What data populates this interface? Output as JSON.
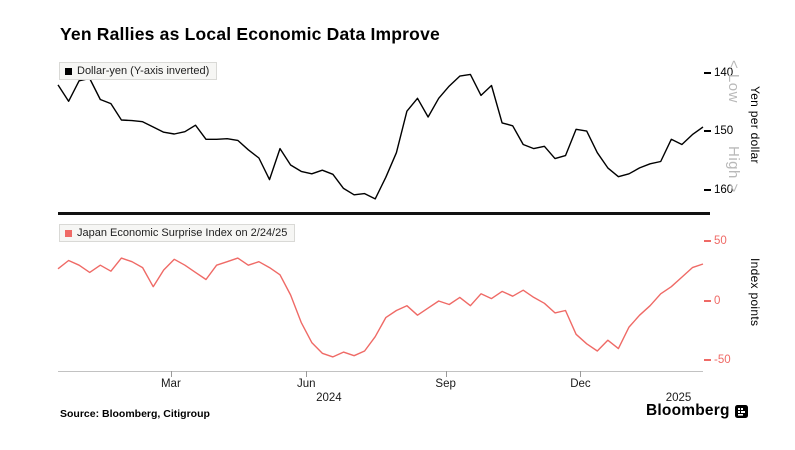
{
  "title": "Yen Rallies as Local Economic Data Improve",
  "source_note": "Source: Bloomberg, Citigroup",
  "brand": "Bloomberg",
  "chart_data": [
    {
      "type": "line",
      "title": "Dollar-yen (Y-axis inverted)",
      "line_name": "dollar-yen-line",
      "color": "#000000",
      "y_axis": {
        "label": "Yen per dollar",
        "ticks": [
          140,
          150,
          160
        ],
        "range": [
          137.5,
          163.5
        ],
        "inverted": true
      },
      "inverted_axis_note": {
        "low_label": "< Low",
        "high_label": "High >"
      },
      "x": "weekly, Dec 2023 - Feb 2025",
      "values": [
        142.1,
        144.9,
        141.4,
        141.0,
        144.6,
        145.3,
        148.1,
        148.2,
        148.4,
        149.3,
        150.2,
        150.5,
        150.1,
        149.0,
        151.4,
        151.4,
        151.3,
        151.6,
        153.2,
        154.6,
        158.3,
        153.0,
        155.8,
        156.9,
        157.3,
        156.7,
        157.4,
        159.8,
        160.9,
        160.7,
        161.6,
        157.9,
        153.7,
        146.6,
        144.4,
        147.6,
        144.4,
        142.3,
        140.6,
        140.3,
        143.9,
        142.2,
        148.6,
        149.1,
        152.3,
        153.0,
        152.6,
        154.7,
        154.2,
        149.7,
        150.0,
        153.7,
        156.3,
        157.8,
        157.3,
        156.3,
        155.6,
        155.2,
        151.4,
        152.3,
        150.6,
        149.3
      ]
    },
    {
      "type": "line",
      "title": "Japan Economic Surprise Index on 2/24/25",
      "line_name": "surprise-index-line",
      "color": "#ef6a66",
      "y_axis": {
        "label": "Index points",
        "ticks": [
          50,
          0,
          -50
        ],
        "range": [
          -58,
          68
        ],
        "inverted": false
      },
      "x": "weekly, Dec 2023 - Feb 2025",
      "values": [
        27,
        34,
        30,
        24,
        30,
        25,
        36,
        33,
        28,
        12,
        26,
        35,
        30,
        24,
        18,
        30,
        33,
        36,
        30,
        33,
        28,
        22,
        5,
        -18,
        -35,
        -44,
        -47,
        -43,
        -46,
        -42,
        -30,
        -14,
        -8,
        -4,
        -12,
        -6,
        0,
        -3,
        3,
        -4,
        6,
        2,
        8,
        4,
        9,
        3,
        -2,
        -10,
        -8,
        -28,
        -36,
        -42,
        -33,
        -40,
        -22,
        -12,
        -4,
        6,
        12,
        20,
        28,
        31
      ]
    }
  ],
  "x_axis": {
    "ticks": [
      {
        "label": "Mar",
        "pos": 0.175
      },
      {
        "label": "Jun",
        "pos": 0.385
      },
      {
        "label": "Sep",
        "pos": 0.601
      },
      {
        "label": "Dec",
        "pos": 0.81
      }
    ],
    "year_labels": [
      {
        "label": "2024",
        "pos": 0.42
      },
      {
        "label": "2025",
        "pos": 0.962
      }
    ]
  }
}
